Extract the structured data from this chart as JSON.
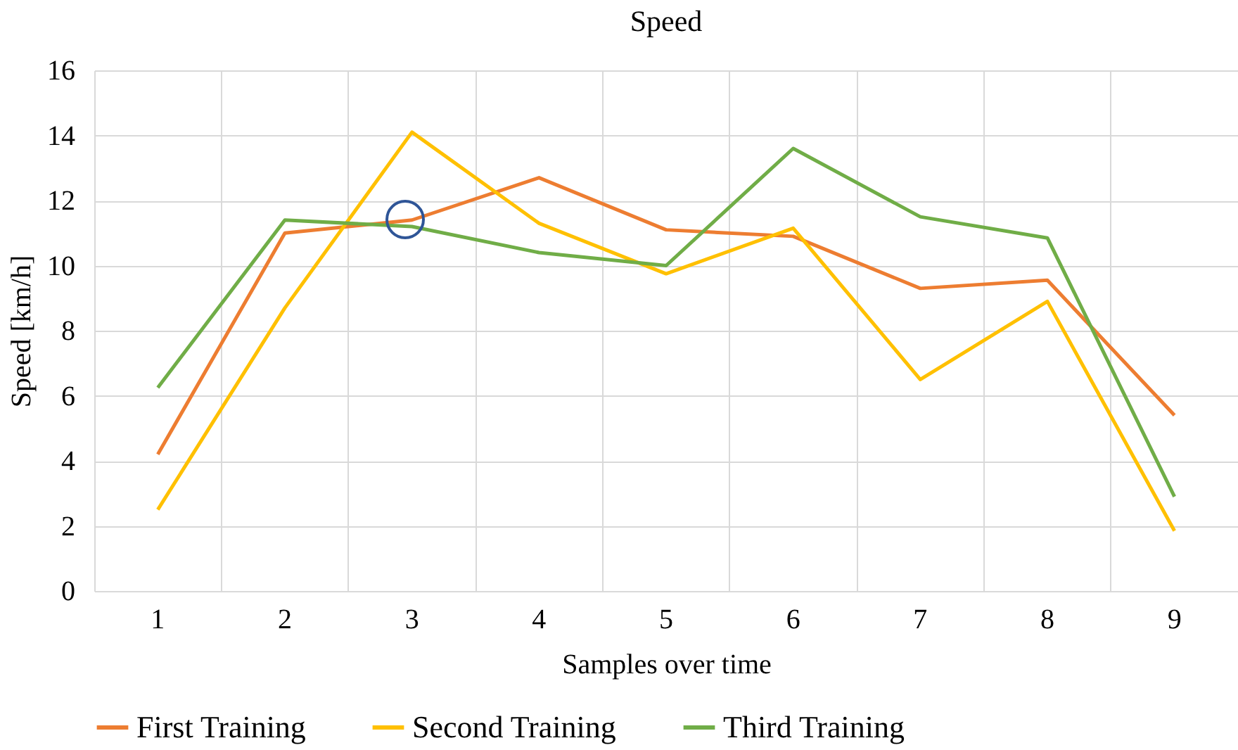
{
  "chart_data": {
    "type": "line",
    "title": "Speed",
    "xlabel": "Samples over time",
    "ylabel": "Speed [km/h]",
    "categories": [
      "1",
      "2",
      "3",
      "4",
      "5",
      "6",
      "7",
      "8",
      "9"
    ],
    "series": [
      {
        "name": "First Training",
        "color": "#ed7d31",
        "values": [
          4.2,
          11.0,
          11.4,
          12.7,
          11.1,
          10.9,
          9.3,
          9.55,
          5.4
        ]
      },
      {
        "name": "Second Training",
        "color": "#ffc000",
        "values": [
          2.5,
          8.7,
          14.1,
          11.3,
          9.75,
          11.15,
          6.5,
          8.9,
          1.85
        ]
      },
      {
        "name": "Third Training",
        "color": "#70ad47",
        "values": [
          6.25,
          11.4,
          11.2,
          10.4,
          10.0,
          13.6,
          11.5,
          10.85,
          2.9
        ]
      }
    ],
    "ylim": [
      0,
      16
    ],
    "yticks": [
      0,
      2,
      4,
      6,
      8,
      10,
      12,
      14,
      16
    ],
    "grid": true,
    "legend": "bottom",
    "marker": "none",
    "line_style": "solid"
  }
}
